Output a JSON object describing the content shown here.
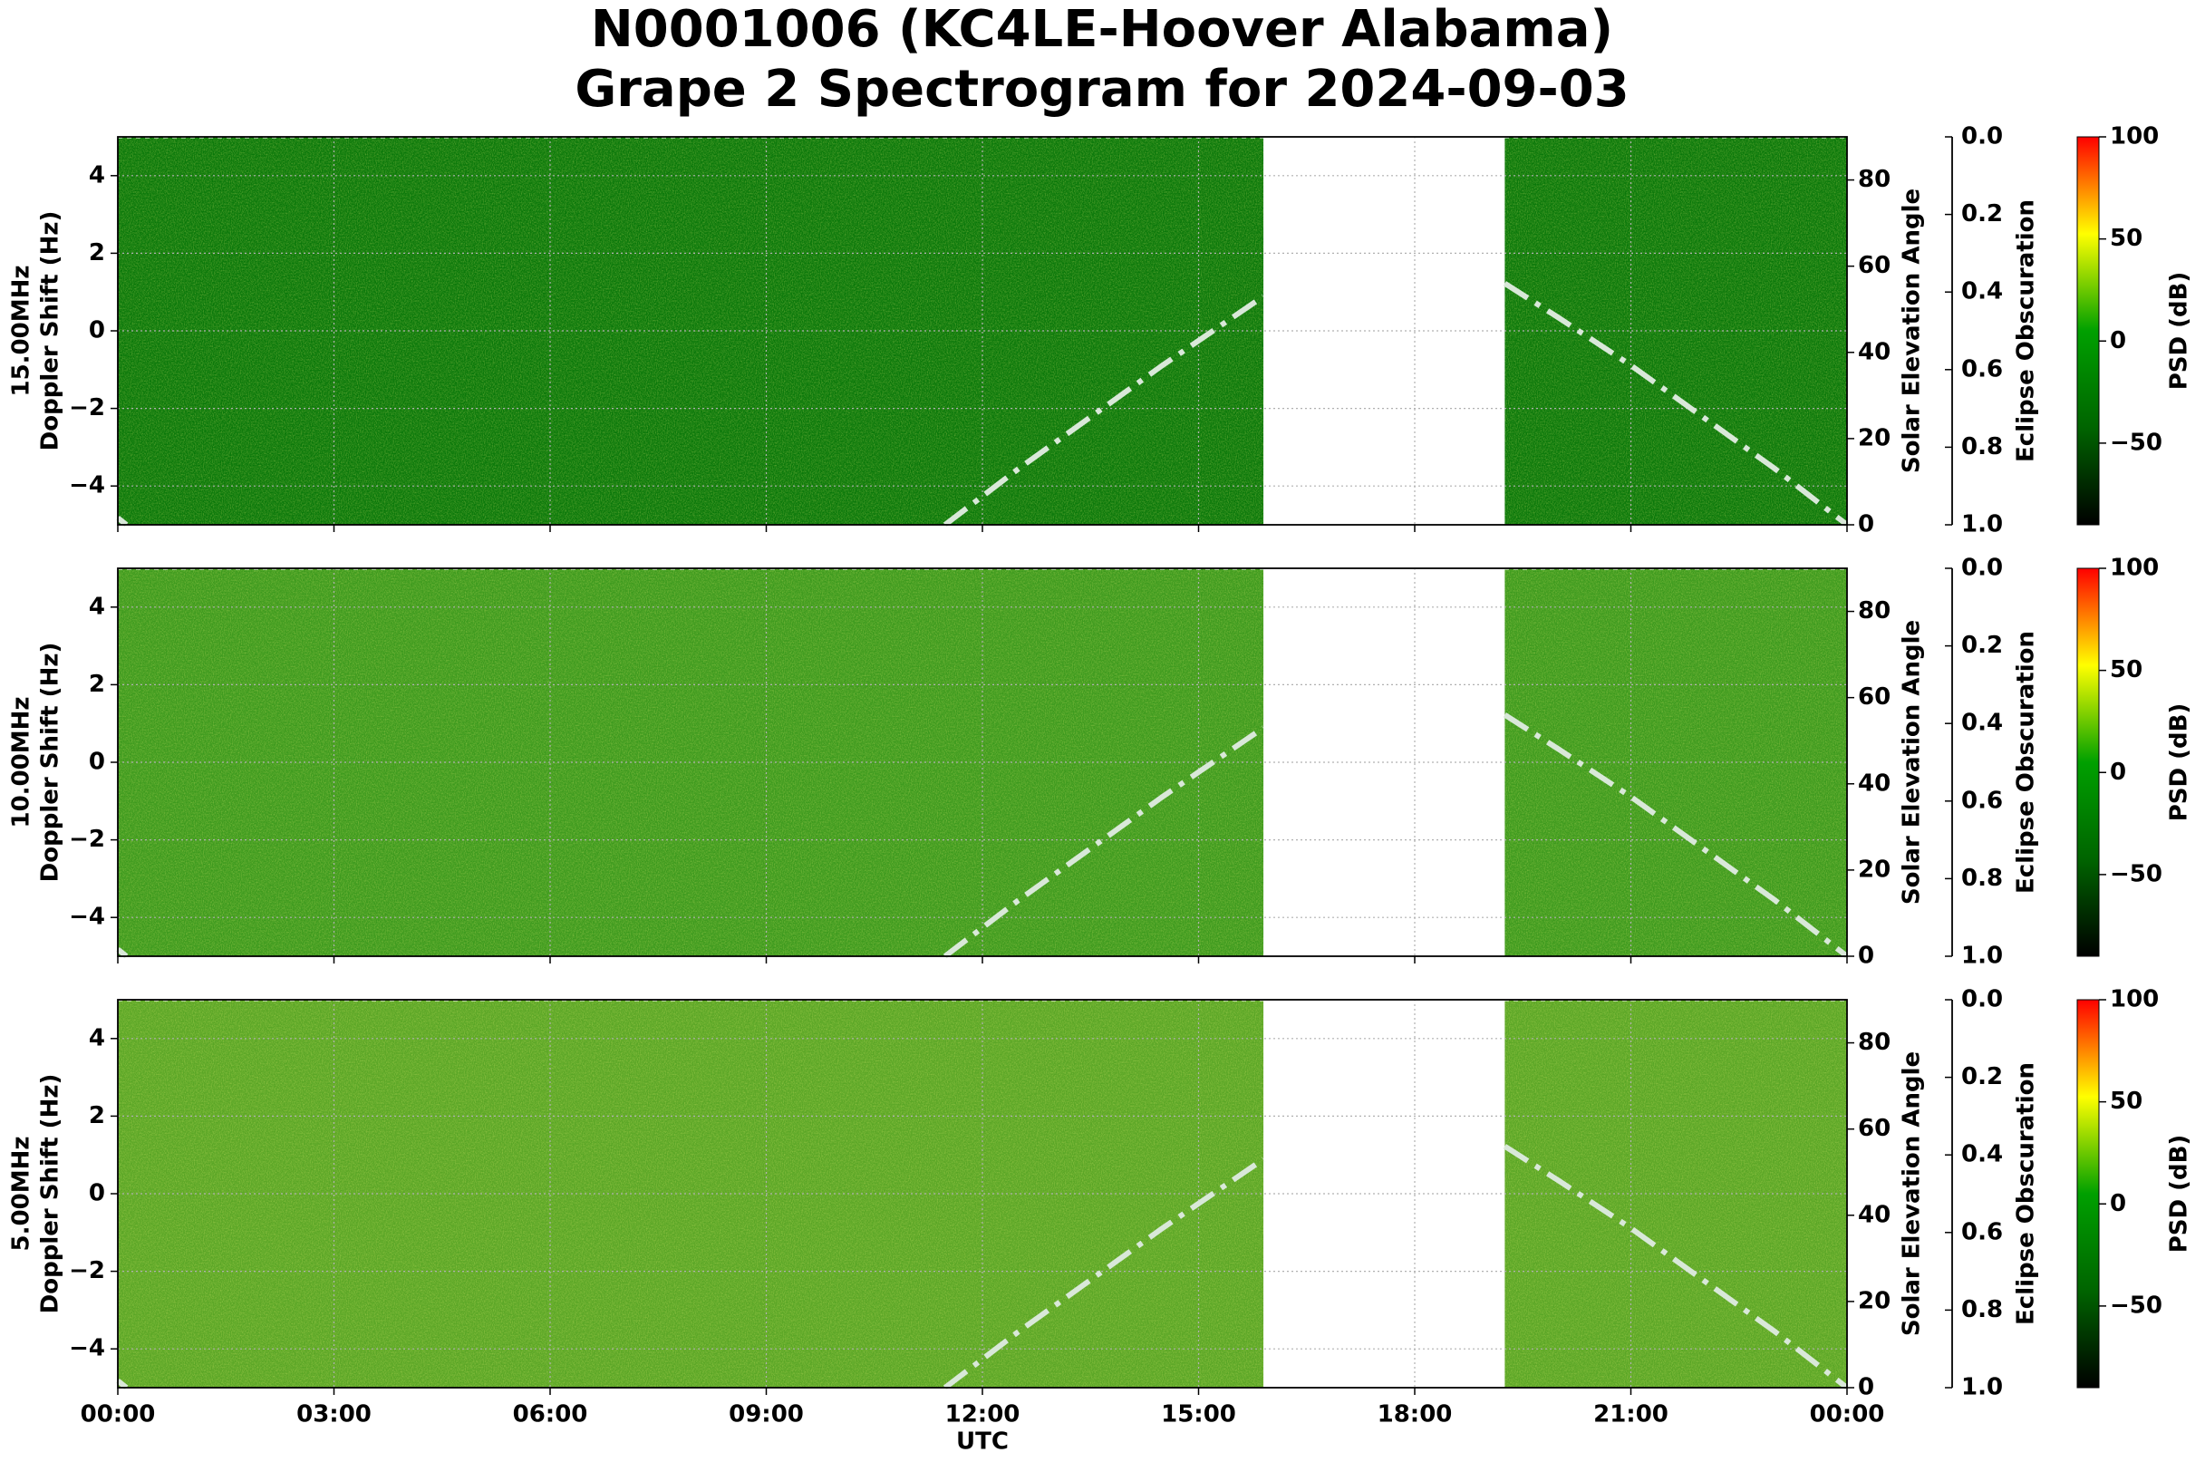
{
  "title": [
    "N0001006 (KC4LE-Hoover Alabama)",
    "Grape 2 Spectrogram for 2024-09-03"
  ],
  "chart_data": [
    {
      "type": "spectrogram",
      "label": "15.00MHz",
      "ylabel": "Doppler Shift (Hz)",
      "background": "#0a780a",
      "xlim": [
        0,
        24
      ],
      "xticks": [
        0,
        3,
        6,
        9,
        12,
        15,
        18,
        21,
        24
      ],
      "grid": true,
      "ylim": [
        -5,
        5
      ],
      "yticks": [
        {
          "value": -4,
          "label": "−4"
        },
        {
          "value": -2,
          "label": "−2"
        },
        0,
        2,
        4
      ],
      "data_gap": [
        15.9,
        19.25
      ],
      "y2label": "Solar Elevation Angle",
      "y2lim": [
        0,
        90
      ],
      "y2ticks": [
        0,
        20,
        40,
        60,
        80
      ],
      "y3label": "Eclipse Obscuration",
      "y3lim": [
        1,
        0
      ],
      "y3ticks": [
        {
          "value": 0,
          "label": "0.0"
        },
        0.2,
        0.4,
        0.6,
        0.8,
        {
          "value": 1,
          "label": "1.0"
        }
      ],
      "series": [
        {
          "axis": "y2",
          "color": "#d9e8d9",
          "x": [
            0,
            0.12,
            0.2,
            11.48,
            12.5,
            13.5,
            14.5,
            15.9,
            16,
            19.25,
            20,
            21,
            22,
            23,
            24
          ],
          "values": [
            1.6,
            0,
            null,
            0,
            13,
            25,
            37,
            53,
            null,
            56,
            48,
            37,
            25,
            13,
            0
          ]
        },
        {
          "axis": "y3",
          "color": "#ffffff",
          "x": [
            0,
            24
          ],
          "values": [
            0,
            0
          ]
        }
      ],
      "colorbar": {
        "label": "PSD (dB)",
        "lim": [
          -90,
          100
        ],
        "colors": [
          "#000000",
          "#006400",
          "#00a000",
          "#ffff00",
          "#ff0000"
        ],
        "ticks": [
          {
            "value": -50,
            "label": "−50"
          },
          0,
          50,
          100
        ]
      }
    },
    {
      "type": "spectrogram",
      "label": "10.00MHz",
      "ylabel": "Doppler Shift (Hz)",
      "background": "#3d9a1e",
      "xlim": [
        0,
        24
      ],
      "xticks": [
        0,
        3,
        6,
        9,
        12,
        15,
        18,
        21,
        24
      ],
      "grid": true,
      "ylim": [
        -5,
        5
      ],
      "yticks": [
        {
          "value": -4,
          "label": "−4"
        },
        {
          "value": -2,
          "label": "−2"
        },
        0,
        2,
        4
      ],
      "data_gap": [
        15.9,
        19.25
      ],
      "y2label": "Solar Elevation Angle",
      "y2lim": [
        0,
        90
      ],
      "y2ticks": [
        0,
        20,
        40,
        60,
        80
      ],
      "y3label": "Eclipse Obscuration",
      "y3lim": [
        1,
        0
      ],
      "y3ticks": [
        {
          "value": 0,
          "label": "0.0"
        },
        0.2,
        0.4,
        0.6,
        0.8,
        {
          "value": 1,
          "label": "1.0"
        }
      ],
      "series": [
        {
          "axis": "y2",
          "color": "#d9e8d9",
          "x": [
            0,
            0.12,
            0.2,
            11.48,
            12.5,
            13.5,
            14.5,
            15.9,
            16,
            19.25,
            20,
            21,
            22,
            23,
            24
          ],
          "values": [
            1.6,
            0,
            null,
            0,
            13,
            25,
            37,
            53,
            null,
            56,
            48,
            37,
            25,
            13,
            0
          ]
        },
        {
          "axis": "y3",
          "color": "#ffffff",
          "x": [
            0,
            24
          ],
          "values": [
            0,
            0
          ]
        }
      ],
      "colorbar": {
        "label": "PSD (dB)",
        "lim": [
          -90,
          100
        ],
        "colors": [
          "#000000",
          "#006400",
          "#00a000",
          "#ffff00",
          "#ff0000"
        ],
        "ticks": [
          {
            "value": -50,
            "label": "−50"
          },
          0,
          50,
          100
        ]
      }
    },
    {
      "type": "spectrogram",
      "label": "5.00MHz",
      "ylabel": "Doppler Shift (Hz)",
      "background": "#5aa626",
      "xlabel": "UTC",
      "xlim": [
        0,
        24
      ],
      "xticks": [
        {
          "value": 0,
          "label": "00:00"
        },
        {
          "value": 3,
          "label": "03:00"
        },
        {
          "value": 6,
          "label": "06:00"
        },
        {
          "value": 9,
          "label": "09:00"
        },
        {
          "value": 12,
          "label": "12:00"
        },
        {
          "value": 15,
          "label": "15:00"
        },
        {
          "value": 18,
          "label": "18:00"
        },
        {
          "value": 21,
          "label": "21:00"
        },
        {
          "value": 24,
          "label": "00:00"
        }
      ],
      "grid": true,
      "ylim": [
        -5,
        5
      ],
      "yticks": [
        {
          "value": -4,
          "label": "−4"
        },
        {
          "value": -2,
          "label": "−2"
        },
        0,
        2,
        4
      ],
      "data_gap": [
        15.9,
        19.25
      ],
      "y2label": "Solar Elevation Angle",
      "y2lim": [
        0,
        90
      ],
      "y2ticks": [
        0,
        20,
        40,
        60,
        80
      ],
      "y3label": "Eclipse Obscuration",
      "y3lim": [
        1,
        0
      ],
      "y3ticks": [
        {
          "value": 0,
          "label": "0.0"
        },
        0.2,
        0.4,
        0.6,
        0.8,
        {
          "value": 1,
          "label": "1.0"
        }
      ],
      "series": [
        {
          "axis": "y2",
          "color": "#d9e8d9",
          "x": [
            0,
            0.12,
            0.2,
            11.48,
            12.5,
            13.5,
            14.5,
            15.9,
            16,
            19.25,
            20,
            21,
            22,
            23,
            24
          ],
          "values": [
            1.6,
            0,
            null,
            0,
            13,
            25,
            37,
            53,
            null,
            56,
            48,
            37,
            25,
            13,
            0
          ]
        },
        {
          "axis": "y3",
          "color": "#ffffff",
          "x": [
            0,
            24
          ],
          "values": [
            0,
            0
          ]
        }
      ],
      "colorbar": {
        "label": "PSD (dB)",
        "lim": [
          -90,
          100
        ],
        "colors": [
          "#000000",
          "#006400",
          "#00a000",
          "#ffff00",
          "#ff0000"
        ],
        "ticks": [
          {
            "value": -50,
            "label": "−50"
          },
          0,
          50,
          100
        ]
      }
    }
  ]
}
